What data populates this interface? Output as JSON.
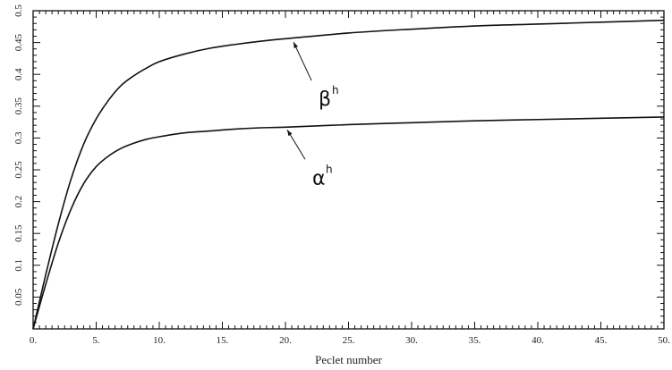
{
  "chart_data": {
    "type": "line",
    "title": "",
    "xlabel": "Peclet number",
    "ylabel": "",
    "xlim": [
      0,
      50
    ],
    "ylim": [
      0,
      0.5
    ],
    "grid": false,
    "x_tick_labels": [
      "0.",
      "5.",
      "10.",
      "15.",
      "20.",
      "25.",
      "30.",
      "35.",
      "40.",
      "45.",
      "50."
    ],
    "x_tick_values": [
      0,
      5,
      10,
      15,
      20,
      25,
      30,
      35,
      40,
      45,
      50
    ],
    "y_tick_labels": [
      "0.05",
      "0.1",
      "0.15",
      "0.2",
      "0.25",
      "0.3",
      "0.35",
      "0.4",
      "0.45",
      "0.5"
    ],
    "y_tick_values": [
      0.05,
      0.1,
      0.15,
      0.2,
      0.25,
      0.3,
      0.35,
      0.4,
      0.45,
      0.5
    ],
    "x": [
      0,
      1,
      2,
      3,
      4,
      5,
      6,
      7,
      8,
      9,
      10,
      12,
      14,
      16,
      18,
      20,
      25,
      30,
      35,
      40,
      45,
      50
    ],
    "series": [
      {
        "name": "β",
        "superscript": "h",
        "label_anchor": {
          "x": 20.5,
          "y": 0.455
        },
        "values": [
          0,
          0.085,
          0.165,
          0.235,
          0.29,
          0.33,
          0.36,
          0.383,
          0.398,
          0.41,
          0.42,
          0.432,
          0.441,
          0.447,
          0.452,
          0.456,
          0.465,
          0.471,
          0.476,
          0.479,
          0.482,
          0.485
        ]
      },
      {
        "name": "α",
        "superscript": "h",
        "label_anchor": {
          "x": 20,
          "y": 0.317
        },
        "values": [
          0,
          0.07,
          0.135,
          0.188,
          0.228,
          0.255,
          0.272,
          0.284,
          0.292,
          0.298,
          0.302,
          0.308,
          0.311,
          0.314,
          0.316,
          0.317,
          0.321,
          0.324,
          0.327,
          0.329,
          0.331,
          0.333
        ]
      }
    ]
  }
}
